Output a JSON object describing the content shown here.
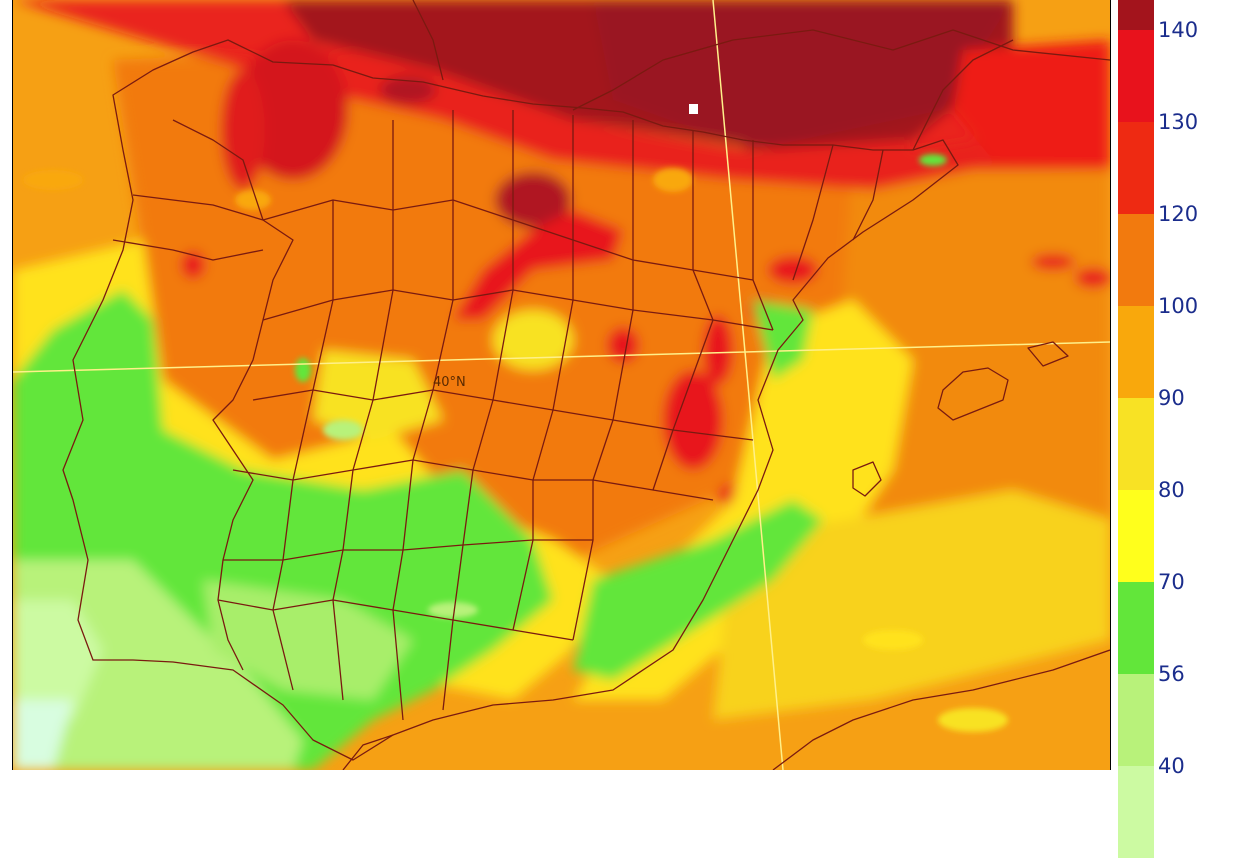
{
  "map": {
    "lat_label": "40°N"
  },
  "legend": {
    "items": [
      {
        "label": "140",
        "color": "#a3141c"
      },
      {
        "label": "130",
        "color": "#e8121c"
      },
      {
        "label": "120",
        "color": "#ee2a12"
      },
      {
        "label": "100",
        "color": "#f27a0e"
      },
      {
        "label": "90",
        "color": "#f9a80c"
      },
      {
        "label": "80",
        "color": "#f8e224"
      },
      {
        "label": "70",
        "color": "#ffff1c"
      },
      {
        "label": "56",
        "color": "#62e63a"
      },
      {
        "label": "40",
        "color": "#b8f27a"
      }
    ],
    "bottom_color": "#ccfaa2"
  },
  "colors": {
    "border_lines": "#7a1a10",
    "meridians": "#fff08a",
    "sea_base": "#f6a014"
  }
}
